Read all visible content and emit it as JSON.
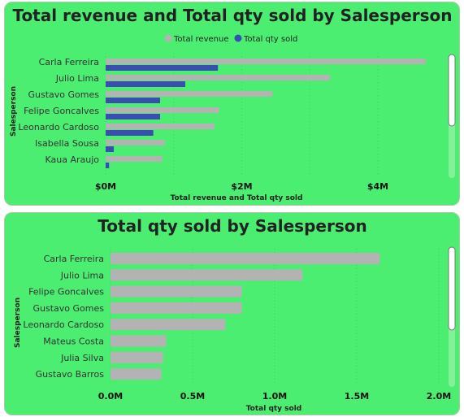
{
  "chart_data": [
    {
      "type": "bar",
      "title": "Total revenue and Total qty sold by Salesperson",
      "xlabel": "Total revenue and Total qty sold",
      "ylabel": "Salesperson",
      "categories": [
        "Carla Ferreira",
        "Julio Lima",
        "Gustavo Gomes",
        "Felipe Goncalves",
        "Leonardo Cardoso",
        "Isabella Sousa",
        "Kaua Araujo"
      ],
      "series": [
        {
          "name": "Total revenue",
          "color": "#b3b3b3",
          "values": [
            4.7,
            3.3,
            2.45,
            1.67,
            1.6,
            0.87,
            0.83
          ]
        },
        {
          "name": "Total qty sold",
          "color": "#3a4db0",
          "values": [
            1.65,
            1.17,
            0.8,
            0.8,
            0.7,
            0.12,
            0.05
          ]
        }
      ],
      "xticks": [
        "$0M",
        "$2M",
        "$4M"
      ],
      "xlim": [
        0,
        5
      ],
      "legend": "top-center",
      "grid": true
    },
    {
      "type": "bar",
      "title": "Total qty sold by Salesperson",
      "xlabel": "Total qty sold",
      "ylabel": "Salesperson",
      "categories": [
        "Carla Ferreira",
        "Julio Lima",
        "Felipe Goncalves",
        "Gustavo Gomes",
        "Leonardo Cardoso",
        "Mateus Costa",
        "Julia Silva",
        "Gustavo Barros"
      ],
      "series": [
        {
          "name": "Total qty sold",
          "color": "#b3b3b3",
          "values": [
            1.64,
            1.17,
            0.8,
            0.8,
            0.7,
            0.34,
            0.32,
            0.31
          ]
        }
      ],
      "xticks": [
        "0.0M",
        "0.5M",
        "1.0M",
        "1.5M",
        "2.0M"
      ],
      "xlim": [
        0,
        2.0
      ],
      "grid": true
    }
  ],
  "colors": {
    "panel_background": "#4cee72",
    "scrollbar": "#ffffff"
  }
}
